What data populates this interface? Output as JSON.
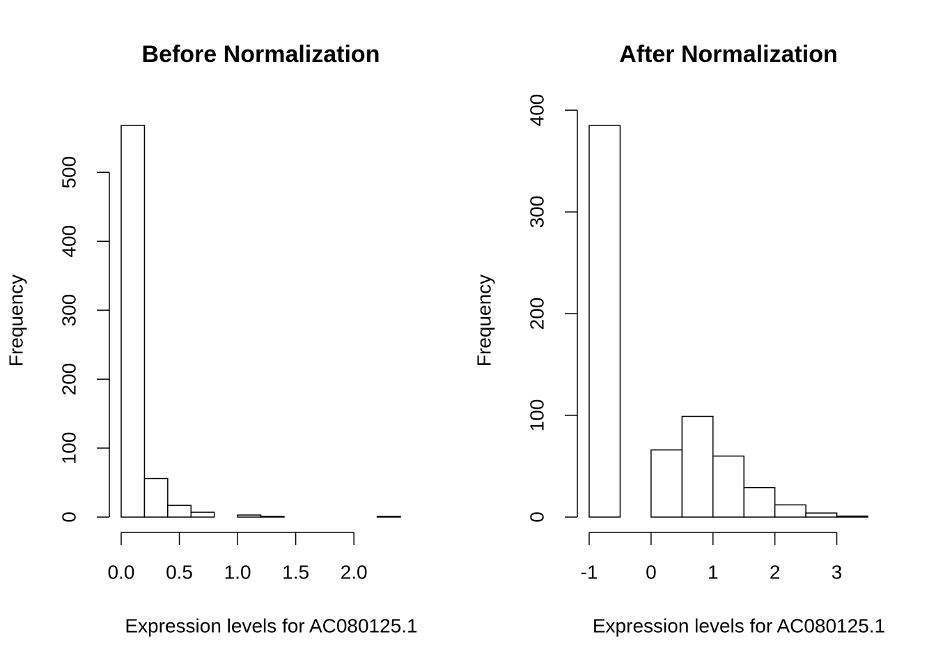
{
  "chart_data": [
    {
      "type": "histogram",
      "title": "Before Normalization",
      "x_label": "Expression levels for AC080125.1",
      "y_label": "Frequency",
      "bins": [
        0,
        0.2,
        0.4,
        0.6,
        0.8,
        1.0,
        1.2,
        1.4,
        1.6,
        1.8,
        2.0,
        2.2,
        2.4
      ],
      "values": [
        568,
        56,
        17,
        7,
        0,
        3,
        1,
        0,
        0,
        0,
        0,
        1
      ],
      "color": "#ffffff",
      "xlim": [
        0,
        2.4
      ],
      "ylim": [
        0,
        568
      ],
      "xticks": [
        {
          "value": 0,
          "label": "0.0"
        },
        0.5,
        {
          "value": 1,
          "label": "1.0"
        },
        1.5,
        {
          "value": 2,
          "label": "2.0"
        }
      ],
      "yticks": [
        0,
        100,
        200,
        300,
        400,
        500
      ]
    },
    {
      "type": "histogram",
      "title": "After Normalization",
      "x_label": "Expression levels for AC080125.1",
      "y_label": "Frequency",
      "bins": [
        -1,
        -0.5,
        0,
        0.5,
        1,
        1.5,
        2,
        2.5,
        3,
        3.5
      ],
      "values": [
        385,
        0,
        66,
        99,
        60,
        29,
        12,
        4,
        1
      ],
      "color": "#ffffff",
      "xlim": [
        -1,
        3.5
      ],
      "ylim": [
        0,
        385
      ],
      "xticks": [
        -1,
        0,
        1,
        2,
        3
      ],
      "yticks": [
        0,
        100,
        200,
        300,
        400
      ]
    }
  ]
}
